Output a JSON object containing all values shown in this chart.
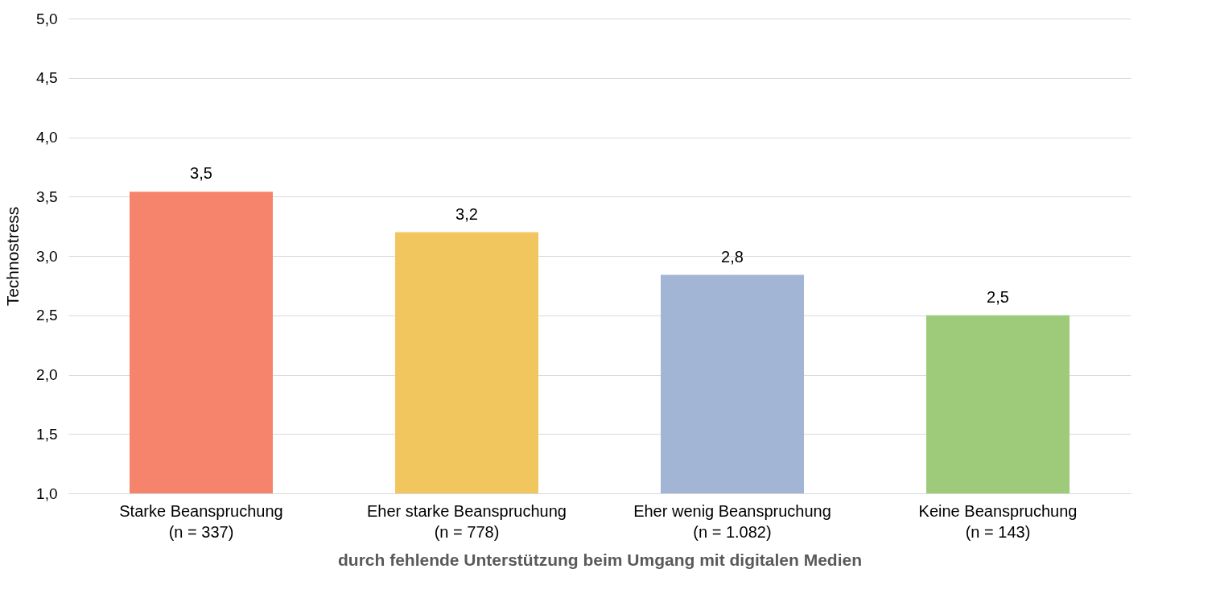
{
  "chart_data": {
    "type": "bar",
    "categories": [
      "Starke Beanspruchung\n(n = 337)",
      "Eher starke Beanspruchung\n(n = 778)",
      "Eher wenig Beanspruchung\n(n = 1.082)",
      "Keine Beanspruchung\n(n = 143)"
    ],
    "values": [
      3.54,
      3.2,
      2.84,
      2.5
    ],
    "value_labels": [
      "3,5",
      "3,2",
      "2,8",
      "2,5"
    ],
    "colors": [
      "#f6846c",
      "#f2c65e",
      "#a3b5d5",
      "#9dcb79"
    ],
    "xlabel": "durch fehlende Unterstützung beim Umgang mit digitalen Medien",
    "ylabel": "Technostress",
    "ylim": [
      1.0,
      5.0
    ],
    "yticks": [
      {
        "value": 1.0,
        "label": "1,0"
      },
      {
        "value": 1.5,
        "label": "1,5"
      },
      {
        "value": 2.0,
        "label": "2,0"
      },
      {
        "value": 2.5,
        "label": "2,5"
      },
      {
        "value": 3.0,
        "label": "3,0"
      },
      {
        "value": 3.5,
        "label": "3,5"
      },
      {
        "value": 4.0,
        "label": "4,0"
      },
      {
        "value": 4.5,
        "label": "4,5"
      },
      {
        "value": 5.0,
        "label": "5,0"
      }
    ],
    "grid": "y",
    "legend": false
  }
}
